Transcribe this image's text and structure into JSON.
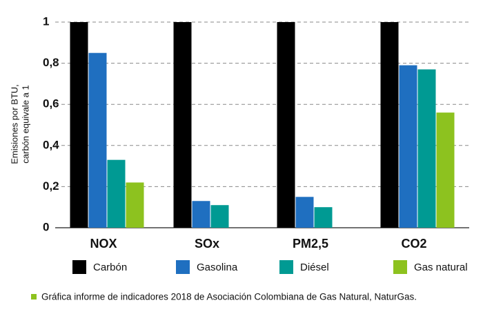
{
  "chart_data": {
    "type": "bar",
    "ylabel": [
      "Emisiones por BTU,",
      "carbón equivale a 1"
    ],
    "categories": [
      "NOX",
      "SOx",
      "PM2,5",
      "CO2"
    ],
    "series": [
      {
        "name": "Carbón",
        "color": "#000000",
        "values": [
          1,
          1,
          1,
          1
        ]
      },
      {
        "name": "Gasolina",
        "color": "#1f6fc0",
        "values": [
          0.85,
          0.13,
          0.15,
          0.79
        ]
      },
      {
        "name": "Diésel",
        "color": "#009a93",
        "values": [
          0.33,
          0.11,
          0.1,
          0.77
        ]
      },
      {
        "name": "Gas natural",
        "color": "#8dc21f",
        "values": [
          0.22,
          0,
          0,
          0.56
        ]
      }
    ],
    "ylim": [
      0,
      1
    ],
    "yticks": [
      0,
      {
        "value": 0.2,
        "label": "0,2"
      },
      {
        "value": 0.4,
        "label": "0,4"
      },
      {
        "value": 0.6,
        "label": "0,6"
      },
      {
        "value": 0.8,
        "label": "0,8"
      },
      1
    ],
    "grid": true,
    "legend": "bottom",
    "source": "Gráfica informe de indicadores 2018 de Asociación Colombiana de Gas Natural, NaturGas."
  }
}
